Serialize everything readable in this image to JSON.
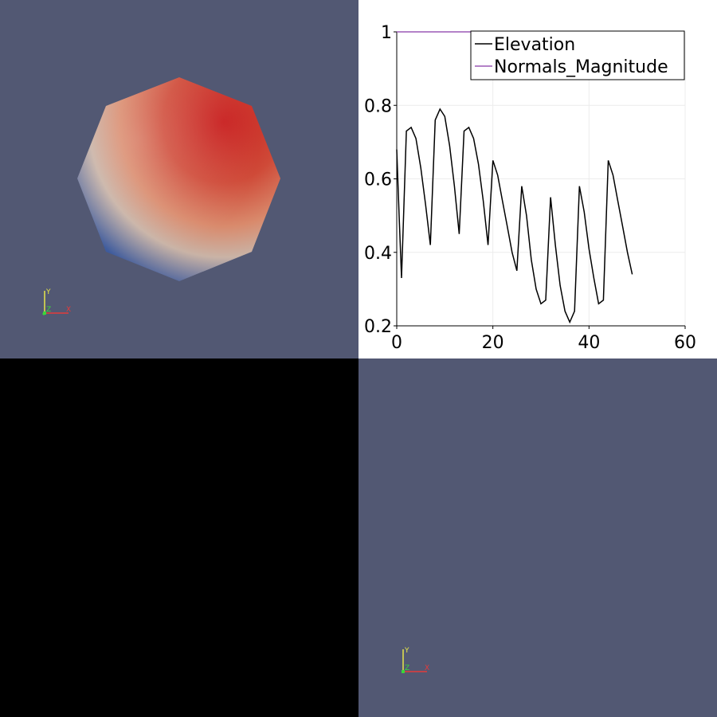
{
  "layout_views": [
    {
      "id": "render-view-1",
      "type": "render-view",
      "background": "#525873"
    },
    {
      "id": "line-chart-view",
      "type": "line-chart-view",
      "background": "#ffffff"
    },
    {
      "id": "empty-view",
      "type": "empty",
      "background": "#000000"
    },
    {
      "id": "render-view-2",
      "type": "render-view",
      "background": "#525873"
    }
  ],
  "orientation_axes": {
    "x_label": "X",
    "y_label": "Y",
    "z_label": "Z",
    "x_color": "#e53a3a",
    "y_color": "#e6e64a",
    "z_color": "#3ad63a"
  },
  "sphere": {
    "colors": {
      "hot": "#c81e1e",
      "mid": "#d99a80",
      "cool": "#3d5a9c"
    }
  },
  "chart_data": {
    "type": "line",
    "title": "",
    "xlabel": "",
    "ylabel": "",
    "xlim": [
      0,
      60
    ],
    "ylim": [
      0.2,
      1.0
    ],
    "x_ticks": [
      "0",
      "20",
      "40",
      "60"
    ],
    "y_ticks": [
      "0.2",
      "0.4",
      "0.6",
      "0.8",
      "1"
    ],
    "grid": true,
    "legend_position": "top-right",
    "series": [
      {
        "name": "Elevation",
        "color": "#000000",
        "x": [
          0,
          0.5,
          1,
          2,
          3,
          4,
          5,
          6,
          7,
          8,
          9,
          10,
          11,
          12,
          13,
          14,
          15,
          16,
          17,
          18,
          19,
          20,
          21,
          22,
          23,
          24,
          25,
          26,
          27,
          28,
          29,
          30,
          31,
          32,
          33,
          34,
          35,
          36,
          37,
          38,
          39,
          40,
          41,
          42,
          43,
          44,
          45,
          46,
          47,
          48,
          49
        ],
        "y": [
          0.68,
          0.5,
          0.33,
          0.73,
          0.74,
          0.71,
          0.63,
          0.53,
          0.42,
          0.76,
          0.79,
          0.77,
          0.69,
          0.58,
          0.45,
          0.73,
          0.74,
          0.71,
          0.64,
          0.54,
          0.42,
          0.65,
          0.61,
          0.54,
          0.47,
          0.4,
          0.35,
          0.58,
          0.5,
          0.38,
          0.3,
          0.26,
          0.27,
          0.55,
          0.42,
          0.31,
          0.24,
          0.21,
          0.24,
          0.58,
          0.51,
          0.41,
          0.33,
          0.26,
          0.27,
          0.65,
          0.61,
          0.54,
          0.47,
          0.4,
          0.34
        ]
      },
      {
        "name": "Normals_Magnitude",
        "color": "#9b59b6",
        "x": [
          0,
          49
        ],
        "y": [
          1,
          1
        ]
      }
    ]
  }
}
